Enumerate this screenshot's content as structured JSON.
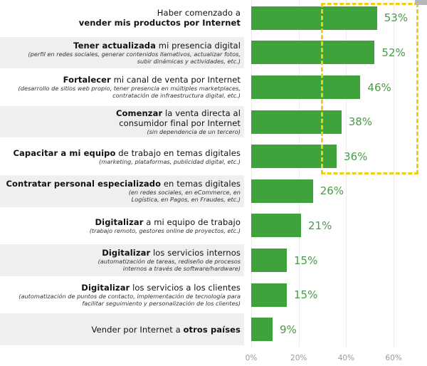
{
  "chart_data": {
    "type": "bar",
    "orientation": "horizontal",
    "title": "",
    "xlabel": "",
    "ylabel": "",
    "xlim": [
      0,
      70
    ],
    "x_ticks": [
      "0%",
      "20%",
      "40%",
      "60%"
    ],
    "x_tick_values": [
      0,
      20,
      40,
      60
    ],
    "grid": true,
    "bar_color": "#3fa33c",
    "value_label_color": "#4a9a48",
    "highlight_color": "#f0cf10",
    "highlight": {
      "from_category_index": 0,
      "to_category_index": 4,
      "from_value": 36,
      "to_value": 70,
      "style": "dashed-box"
    },
    "categories": [
      {
        "pre": "Haber comenzado a",
        "bold": "vender mis productos por Internet",
        "post": "",
        "bold_first_newline": true,
        "sub": ""
      },
      {
        "pre": "",
        "bold": "Tener actualizada",
        "post": " mi presencia digital",
        "sub": "(perfil en redes sociales, generar contenidos llamativos, actualizar fotos, subir dinámicas y actividades, etc.)"
      },
      {
        "pre": "",
        "bold": "Fortalecer",
        "post": " mi canal de venta por Internet",
        "sub": "(desarrollo de sitios web propio, tener presencia en múltiples marketplaces, contratación de infraestructura digital, etc.)"
      },
      {
        "pre": "",
        "bold": "Comenzar",
        "post": " la venta directa al consumidor final por Internet",
        "sub": "(sin dependencia de un tercero)"
      },
      {
        "pre": "",
        "bold": "Capacitar a mi equipo",
        "post": " de trabajo en temas digitales",
        "sub": "(marketing, plataformas, publicidad digital, etc.)"
      },
      {
        "pre": "",
        "bold": "Contratar personal especializado",
        "post": " en temas digitales",
        "sub": "(en redes sociales, en eCommerce, en Logística, en Pagos, en Fraudes, etc.)"
      },
      {
        "pre": "",
        "bold": "Digitalizar",
        "post": " a mi equipo de trabajo",
        "sub": "(trabajo remoto, gestores online de proyectos, etc.)"
      },
      {
        "pre": "",
        "bold": "Digitalizar",
        "post": " los servicios internos",
        "sub": "(automatización de tareas, rediseño de procesos internos a través de software/hardware)"
      },
      {
        "pre": "",
        "bold": "Digitalizar",
        "post": " los servicios a los clientes",
        "sub": "(automatización de puntos de contacto, implementación de tecnología para facilitar seguimiento y personalización de los clientes)"
      },
      {
        "pre": "Vender por Internet a ",
        "bold": "otros países",
        "post": "",
        "sub": ""
      }
    ],
    "values": [
      53,
      52,
      46,
      38,
      36,
      26,
      21,
      15,
      15,
      9
    ],
    "value_labels": [
      "53%",
      "52%",
      "46%",
      "38%",
      "36%",
      "26%",
      "21%",
      "15%",
      "15%",
      "9%"
    ]
  }
}
